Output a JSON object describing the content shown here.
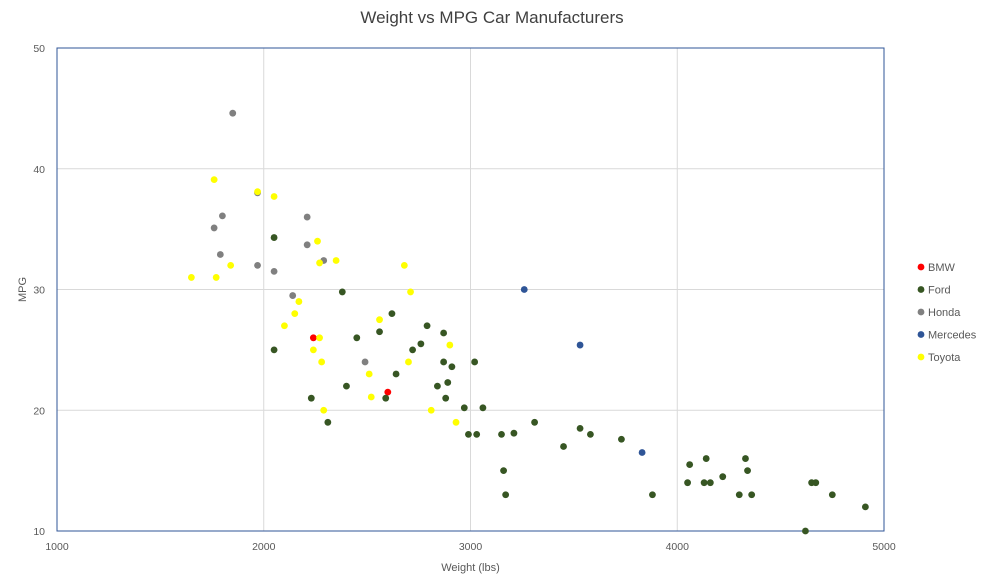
{
  "chart_data": {
    "type": "scatter",
    "title": "Weight vs MPG Car Manufacturers",
    "xlabel": "Weight (lbs)",
    "ylabel": "MPG",
    "xlim": [
      1000,
      5000
    ],
    "ylim": [
      10,
      50
    ],
    "xticks": [
      1000,
      2000,
      3000,
      4000,
      5000
    ],
    "yticks": [
      10,
      20,
      30,
      40,
      50
    ],
    "grid": true,
    "legend_position": "right",
    "series": [
      {
        "name": "BMW",
        "color": "#ff0000",
        "points": [
          [
            2240,
            26
          ],
          [
            2600,
            21.5
          ]
        ]
      },
      {
        "name": "Ford",
        "color": "#375623",
        "points": [
          [
            2050,
            34.3
          ],
          [
            2050,
            25
          ],
          [
            2230,
            21
          ],
          [
            2310,
            19
          ],
          [
            2380,
            29.8
          ],
          [
            2400,
            22
          ],
          [
            2450,
            26
          ],
          [
            2560,
            26.5
          ],
          [
            2590,
            21
          ],
          [
            2620,
            28
          ],
          [
            2640,
            23
          ],
          [
            2720,
            25
          ],
          [
            2760,
            25.5
          ],
          [
            2790,
            27
          ],
          [
            2840,
            22
          ],
          [
            2870,
            26.4
          ],
          [
            2870,
            24
          ],
          [
            2880,
            21
          ],
          [
            2890,
            22.3
          ],
          [
            2910,
            23.6
          ],
          [
            2970,
            20.2
          ],
          [
            2990,
            18
          ],
          [
            3020,
            24
          ],
          [
            3030,
            18
          ],
          [
            3060,
            20.2
          ],
          [
            3150,
            18
          ],
          [
            3160,
            15
          ],
          [
            3170,
            13
          ],
          [
            3210,
            18.1
          ],
          [
            3310,
            19
          ],
          [
            3450,
            17
          ],
          [
            3530,
            18.5
          ],
          [
            3580,
            18
          ],
          [
            3730,
            17.6
          ],
          [
            3880,
            13
          ],
          [
            4050,
            14
          ],
          [
            4060,
            15.5
          ],
          [
            4130,
            14
          ],
          [
            4140,
            16
          ],
          [
            4160,
            14
          ],
          [
            4220,
            14.5
          ],
          [
            4300,
            13
          ],
          [
            4330,
            16
          ],
          [
            4340,
            15
          ],
          [
            4360,
            13
          ],
          [
            4620,
            10
          ],
          [
            4650,
            14
          ],
          [
            4670,
            14
          ],
          [
            4750,
            13
          ],
          [
            4910,
            12
          ]
        ]
      },
      {
        "name": "Honda",
        "color": "#808080",
        "points": [
          [
            1850,
            44.6
          ],
          [
            1760,
            35.1
          ],
          [
            1790,
            32.9
          ],
          [
            1800,
            36.1
          ],
          [
            1970,
            32
          ],
          [
            1970,
            38
          ],
          [
            2050,
            31.5
          ],
          [
            2140,
            29.5
          ],
          [
            2210,
            36
          ],
          [
            2210,
            33.7
          ],
          [
            2290,
            32.4
          ],
          [
            2490,
            24
          ]
        ]
      },
      {
        "name": "Mercedes",
        "color": "#2f5597",
        "points": [
          [
            3260,
            30
          ],
          [
            3530,
            25.4
          ],
          [
            3830,
            16.5
          ]
        ]
      },
      {
        "name": "Toyota",
        "color": "#ffff00",
        "points": [
          [
            1650,
            31
          ],
          [
            1760,
            39.1
          ],
          [
            1770,
            31
          ],
          [
            1840,
            32
          ],
          [
            1970,
            38.1
          ],
          [
            2050,
            37.7
          ],
          [
            2100,
            27
          ],
          [
            2150,
            28
          ],
          [
            2170,
            29
          ],
          [
            2240,
            25
          ],
          [
            2260,
            34
          ],
          [
            2270,
            32.2
          ],
          [
            2270,
            26
          ],
          [
            2280,
            24
          ],
          [
            2290,
            20
          ],
          [
            2350,
            32.4
          ],
          [
            2510,
            23
          ],
          [
            2520,
            21.1
          ],
          [
            2560,
            27.5
          ],
          [
            2680,
            32
          ],
          [
            2700,
            24
          ],
          [
            2710,
            29.8
          ],
          [
            2810,
            20
          ],
          [
            2900,
            25.4
          ],
          [
            2930,
            19
          ]
        ]
      }
    ]
  }
}
